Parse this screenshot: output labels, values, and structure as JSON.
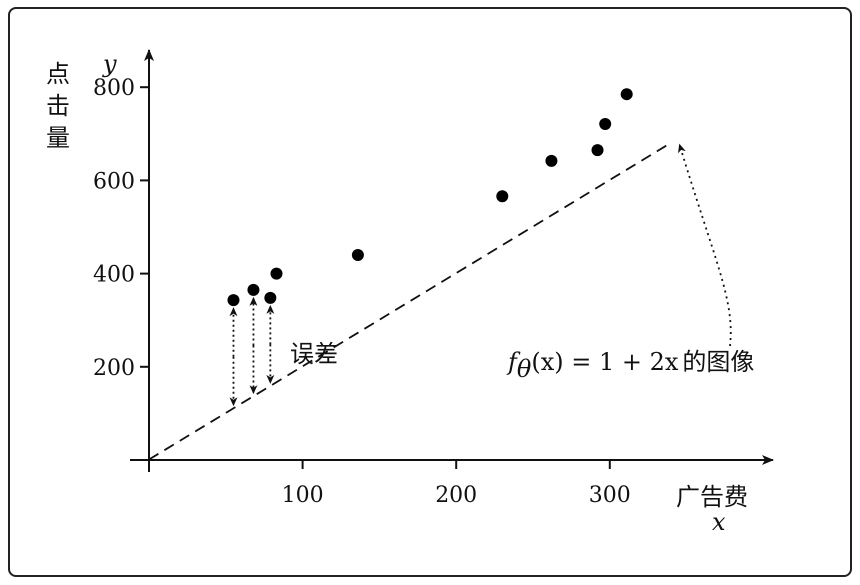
{
  "chart_data": {
    "type": "scatter",
    "x": [
      55,
      68,
      79,
      83,
      136,
      230,
      262,
      292,
      297,
      311
    ],
    "y": [
      343,
      365,
      348,
      400,
      440,
      566,
      642,
      665,
      721,
      785
    ],
    "xticks": [
      "100",
      "200",
      "300"
    ],
    "yticks": [
      "200",
      "400",
      "600",
      "800"
    ],
    "xlim": [
      0,
      400
    ],
    "ylim": [
      0,
      850
    ],
    "xlabel_cn": "广告费",
    "xlabel_var": "x",
    "ylabel_cn": [
      "点",
      "击",
      "量"
    ],
    "ylabel_var": "y",
    "line": {
      "intercept": 1,
      "slope": 2,
      "style": "dashed",
      "x_range": [
        0,
        340
      ]
    },
    "line_label": {
      "f": "f",
      "sub": "θ",
      "rest": "(x) = 1 + 2x",
      "suffix": "的图像"
    },
    "error_label": "误差",
    "error_points": [
      0,
      1,
      2
    ],
    "grid": false,
    "legend": "none"
  }
}
